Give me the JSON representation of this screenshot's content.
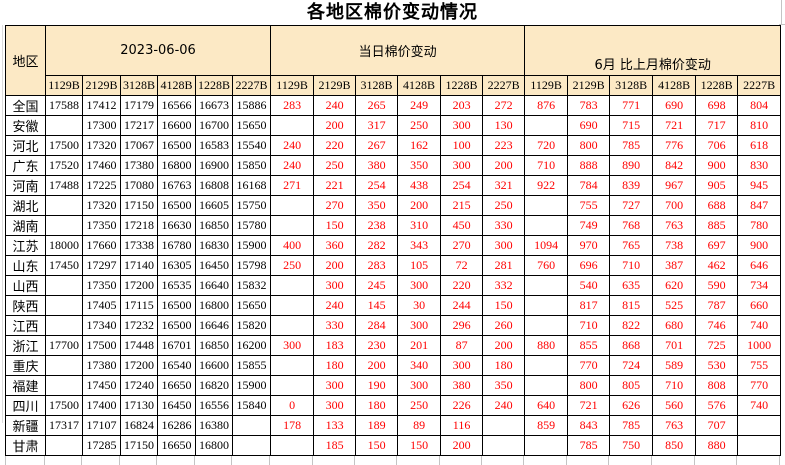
{
  "title": "各地区棉价变动情况",
  "colors": {
    "header_bg": "#FCE9C5",
    "change_text": "#FF0000",
    "price_text": "#000000",
    "border": "#000000",
    "gridline": "#C4C4C4"
  },
  "table": {
    "region_header": "地区",
    "groups": [
      {
        "label": "2023-06-06",
        "columns": [
          "1129B",
          "2129B",
          "3128B",
          "4128B",
          "1228B",
          "2227B"
        ]
      },
      {
        "label": "当日棉价变动",
        "columns": [
          "1129B",
          "2129B",
          "3128B",
          "4128B",
          "1228B",
          "2227B"
        ]
      },
      {
        "label": "6月 比上月棉价变动",
        "columns": [
          "1129B",
          "2129B",
          "3128B",
          "4128B",
          "1228B",
          "2227B"
        ]
      }
    ],
    "rows": [
      {
        "region": "全国",
        "prices": [
          "17588",
          "17412",
          "17179",
          "16566",
          "16673",
          "15886"
        ],
        "daily": [
          "283",
          "240",
          "265",
          "249",
          "203",
          "272"
        ],
        "monthly": [
          "876",
          "783",
          "771",
          "690",
          "698",
          "804"
        ]
      },
      {
        "region": "安徽",
        "prices": [
          "",
          "17300",
          "17217",
          "16600",
          "16700",
          "15650"
        ],
        "daily": [
          "",
          "200",
          "317",
          "250",
          "300",
          "130"
        ],
        "monthly": [
          "",
          "690",
          "715",
          "721",
          "717",
          "810"
        ]
      },
      {
        "region": "河北",
        "prices": [
          "17500",
          "17320",
          "17067",
          "16500",
          "16583",
          "15540"
        ],
        "daily": [
          "240",
          "220",
          "267",
          "162",
          "100",
          "223"
        ],
        "monthly": [
          "720",
          "800",
          "785",
          "776",
          "706",
          "618"
        ]
      },
      {
        "region": "广东",
        "prices": [
          "17520",
          "17460",
          "17380",
          "16800",
          "16900",
          "15850"
        ],
        "daily": [
          "240",
          "250",
          "380",
          "350",
          "300",
          "200"
        ],
        "monthly": [
          "710",
          "888",
          "890",
          "842",
          "900",
          "830"
        ]
      },
      {
        "region": "河南",
        "prices": [
          "17488",
          "17225",
          "17080",
          "16763",
          "16808",
          "16168"
        ],
        "daily": [
          "271",
          "221",
          "254",
          "438",
          "254",
          "321"
        ],
        "monthly": [
          "922",
          "784",
          "839",
          "967",
          "905",
          "945"
        ]
      },
      {
        "region": "湖北",
        "prices": [
          "",
          "17320",
          "17150",
          "16500",
          "16605",
          "15750"
        ],
        "daily": [
          "",
          "270",
          "350",
          "200",
          "215",
          "250"
        ],
        "monthly": [
          "",
          "755",
          "727",
          "700",
          "688",
          "847"
        ]
      },
      {
        "region": "湖南",
        "prices": [
          "",
          "17350",
          "17218",
          "16630",
          "16850",
          "15780"
        ],
        "daily": [
          "",
          "150",
          "238",
          "310",
          "450",
          "330"
        ],
        "monthly": [
          "",
          "749",
          "768",
          "763",
          "885",
          "780"
        ]
      },
      {
        "region": "江苏",
        "prices": [
          "18000",
          "17660",
          "17338",
          "16780",
          "16830",
          "15900"
        ],
        "daily": [
          "400",
          "360",
          "282",
          "343",
          "270",
          "300"
        ],
        "monthly": [
          "1094",
          "970",
          "765",
          "738",
          "697",
          "900"
        ]
      },
      {
        "region": "山东",
        "prices": [
          "17450",
          "17297",
          "17140",
          "16305",
          "16450",
          "15798"
        ],
        "daily": [
          "250",
          "200",
          "283",
          "105",
          "72",
          "281"
        ],
        "monthly": [
          "760",
          "696",
          "710",
          "387",
          "462",
          "646"
        ]
      },
      {
        "region": "山西",
        "prices": [
          "",
          "17350",
          "17200",
          "16535",
          "16640",
          "15832"
        ],
        "daily": [
          "",
          "300",
          "245",
          "300",
          "220",
          "332"
        ],
        "monthly": [
          "",
          "540",
          "635",
          "620",
          "590",
          "734"
        ]
      },
      {
        "region": "陕西",
        "prices": [
          "",
          "17405",
          "17115",
          "16500",
          "16800",
          "15650"
        ],
        "daily": [
          "",
          "240",
          "145",
          "30",
          "244",
          "150"
        ],
        "monthly": [
          "",
          "817",
          "815",
          "525",
          "787",
          "660"
        ]
      },
      {
        "region": "江西",
        "prices": [
          "",
          "17340",
          "17232",
          "16500",
          "16646",
          "15820"
        ],
        "daily": [
          "",
          "330",
          "284",
          "300",
          "296",
          "260"
        ],
        "monthly": [
          "",
          "710",
          "822",
          "680",
          "746",
          "740"
        ]
      },
      {
        "region": "浙江",
        "prices": [
          "17700",
          "17500",
          "17448",
          "16701",
          "16850",
          "16200"
        ],
        "daily": [
          "300",
          "183",
          "230",
          "201",
          "87",
          "200"
        ],
        "monthly": [
          "880",
          "855",
          "868",
          "701",
          "725",
          "1000"
        ]
      },
      {
        "region": "重庆",
        "prices": [
          "",
          "17380",
          "17200",
          "16540",
          "16600",
          "15855"
        ],
        "daily": [
          "",
          "180",
          "200",
          "340",
          "300",
          "180"
        ],
        "monthly": [
          "",
          "770",
          "724",
          "589",
          "530",
          "755"
        ]
      },
      {
        "region": "福建",
        "prices": [
          "",
          "17450",
          "17240",
          "16650",
          "16820",
          "15900"
        ],
        "daily": [
          "",
          "300",
          "190",
          "300",
          "380",
          "350"
        ],
        "monthly": [
          "",
          "800",
          "805",
          "710",
          "808",
          "770"
        ]
      },
      {
        "region": "四川",
        "prices": [
          "17500",
          "17400",
          "17130",
          "16450",
          "16556",
          "15840"
        ],
        "daily": [
          "0",
          "300",
          "180",
          "250",
          "226",
          "240"
        ],
        "monthly": [
          "640",
          "721",
          "626",
          "560",
          "576",
          "740"
        ]
      },
      {
        "region": "新疆",
        "prices": [
          "17317",
          "17107",
          "16824",
          "16286",
          "16380",
          ""
        ],
        "daily": [
          "178",
          "133",
          "189",
          "89",
          "116",
          ""
        ],
        "monthly": [
          "859",
          "843",
          "785",
          "763",
          "707",
          ""
        ]
      },
      {
        "region": "甘肃",
        "prices": [
          "",
          "17285",
          "17150",
          "16650",
          "16800",
          ""
        ],
        "daily": [
          "",
          "185",
          "150",
          "150",
          "200",
          ""
        ],
        "monthly": [
          "",
          "785",
          "750",
          "850",
          "880",
          ""
        ]
      }
    ]
  }
}
